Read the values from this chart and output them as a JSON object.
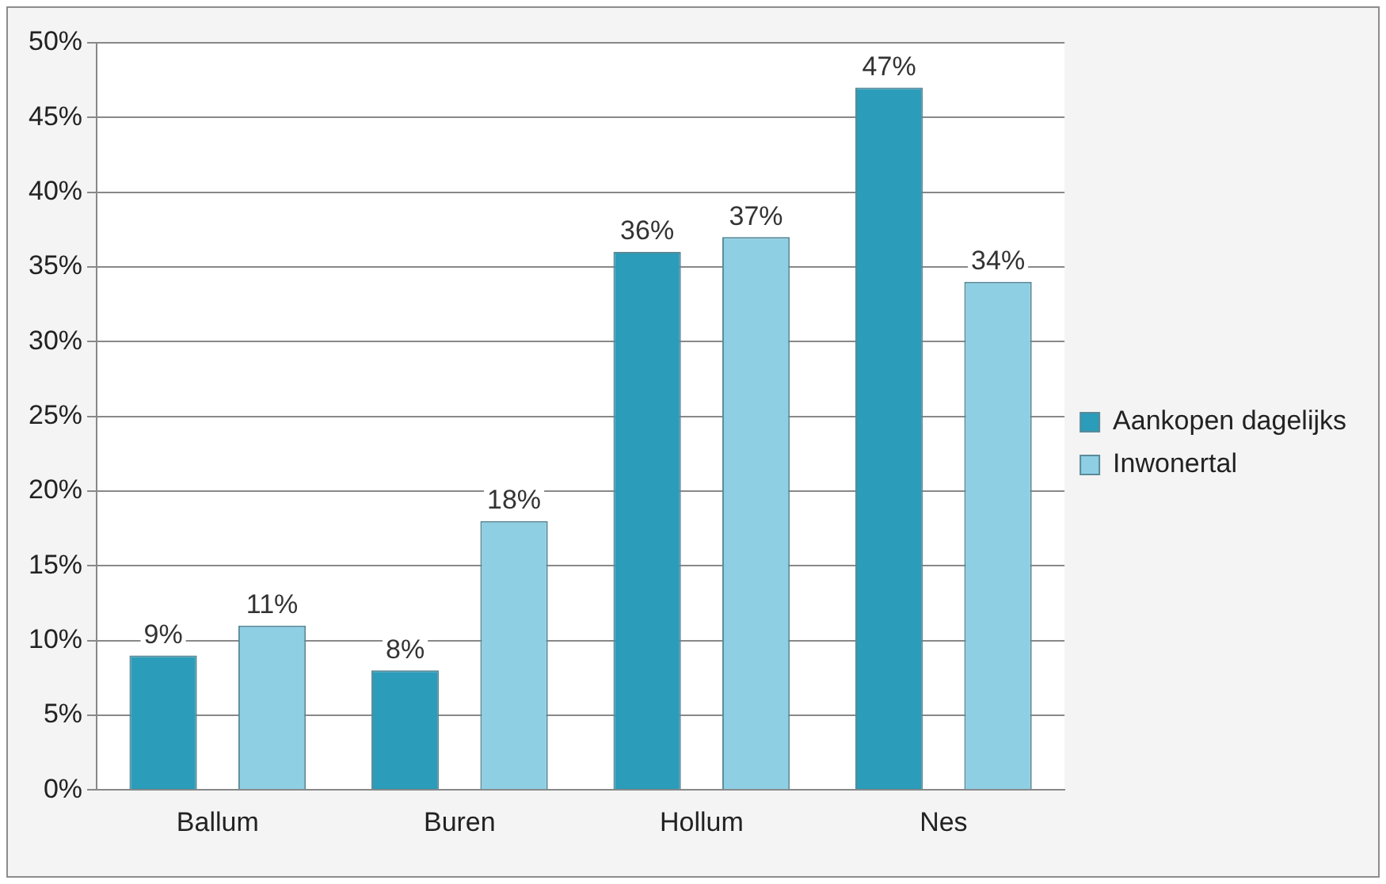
{
  "chart_data": {
    "type": "bar",
    "categories": [
      "Ballum",
      "Buren",
      "Hollum",
      "Nes"
    ],
    "series": [
      {
        "name": "Aankopen dagelijks",
        "color": "#2b9cb9",
        "values": [
          9,
          8,
          36,
          47
        ],
        "value_labels": [
          "9%",
          "8%",
          "36%",
          "47%"
        ]
      },
      {
        "name": "Inwonertal",
        "color": "#8fcfe4",
        "values": [
          11,
          18,
          37,
          34
        ],
        "value_labels": [
          "11%",
          "18%",
          "37%",
          "34%"
        ]
      }
    ],
    "ylim": [
      0,
      50
    ],
    "yticks": [
      {
        "value": 0,
        "label": "0%"
      },
      {
        "value": 5,
        "label": "5%"
      },
      {
        "value": 10,
        "label": "10%"
      },
      {
        "value": 15,
        "label": "15%"
      },
      {
        "value": 20,
        "label": "20%"
      },
      {
        "value": 25,
        "label": "25%"
      },
      {
        "value": 30,
        "label": "30%"
      },
      {
        "value": 35,
        "label": "35%"
      },
      {
        "value": 40,
        "label": "40%"
      },
      {
        "value": 45,
        "label": "45%"
      },
      {
        "value": 50,
        "label": "50%"
      }
    ],
    "grid": "y",
    "legend": "right"
  }
}
